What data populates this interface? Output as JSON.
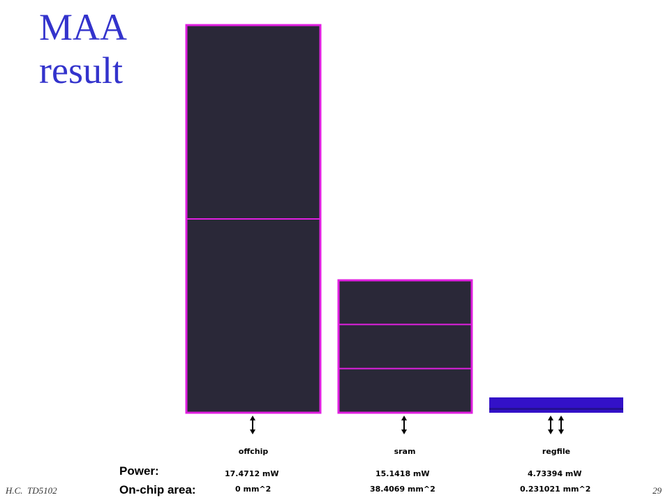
{
  "title": {
    "line1": "MAA",
    "line2": "result"
  },
  "colors": {
    "title": "#3333cc",
    "block_fill": "#2a2838",
    "block_border": "#e020e0",
    "regfile_fill": "#3311c8",
    "regfile_stripe": "#241090",
    "arrow": "#000000"
  },
  "memories": [
    {
      "name": "offchip",
      "power": "17.4712 mW",
      "area": "0 mm^2",
      "blocks": 2,
      "ports": 1
    },
    {
      "name": "sram",
      "power": "15.1418 mW",
      "area": "38.4069 mm^2",
      "blocks": 3,
      "ports": 1
    },
    {
      "name": "regfile",
      "power": "4.73394 mW",
      "area": "0.231021 mm^2",
      "blocks": 1,
      "ports": 2
    }
  ],
  "labels": {
    "power": "Power:",
    "area": "On-chip area:"
  },
  "footer": {
    "left": "H.C.  TD5102",
    "right": "29"
  }
}
